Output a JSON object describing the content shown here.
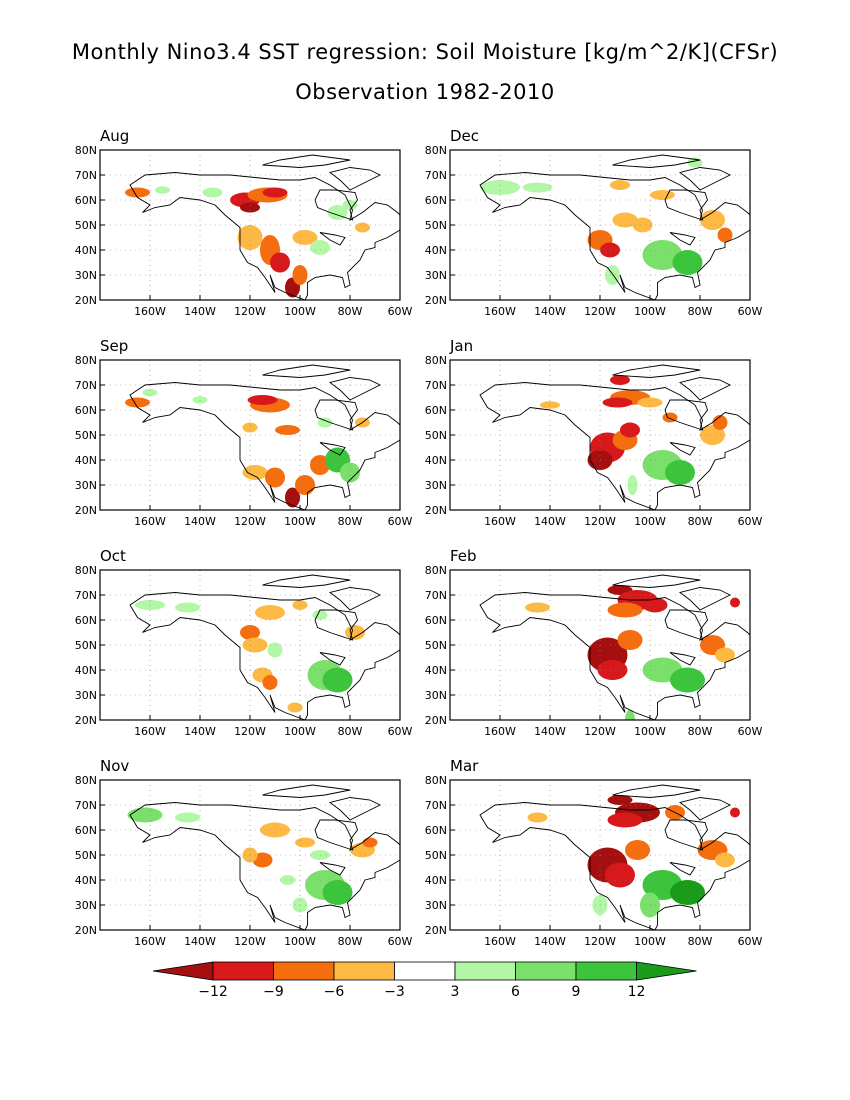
{
  "title": "Monthly Nino3.4 SST regression: Soil Moisture [kg/m^2/K](CFSr)",
  "subtitle": "Observation 1982-2010",
  "lat_ticks": [
    "80N",
    "70N",
    "60N",
    "50N",
    "40N",
    "30N",
    "20N"
  ],
  "lon_ticks": [
    "160W",
    "140W",
    "120W",
    "100W",
    "80W",
    "60W"
  ],
  "panels": [
    {
      "label": "Aug"
    },
    {
      "label": "Dec"
    },
    {
      "label": "Sep"
    },
    {
      "label": "Jan"
    },
    {
      "label": "Oct"
    },
    {
      "label": "Feb"
    },
    {
      "label": "Nov"
    },
    {
      "label": "Mar"
    }
  ],
  "colorbar": {
    "tick_labels": [
      "-12",
      "-9",
      "-6",
      "-3",
      "3",
      "6",
      "9",
      "12"
    ],
    "colors": [
      "#a50f0f",
      "#d7191c",
      "#f46d0f",
      "#fdb944",
      "#ffffff",
      "#b2f7a6",
      "#7be06b",
      "#3cc43c",
      "#1a9c1a"
    ]
  }
}
